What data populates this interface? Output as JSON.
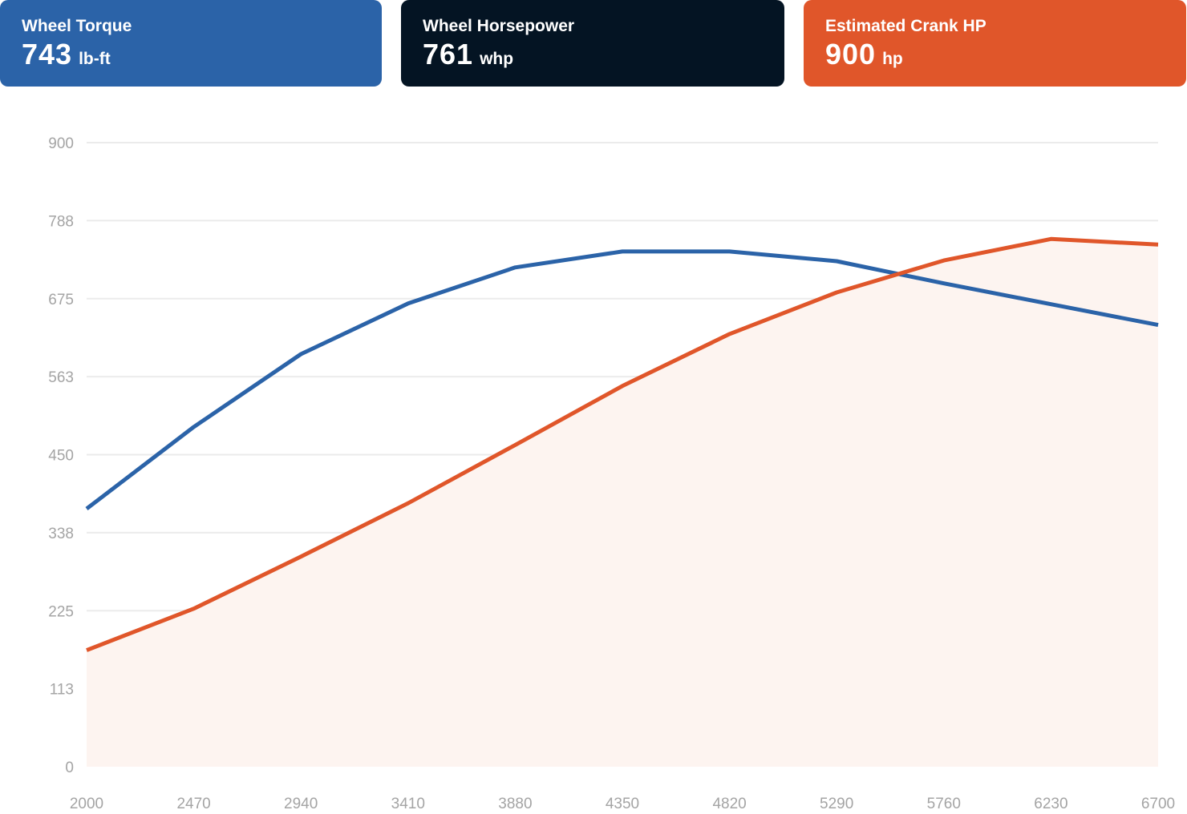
{
  "cards": [
    {
      "label": "Wheel Torque",
      "value": "743",
      "unit": "lb-ft",
      "color": "#2b63a8"
    },
    {
      "label": "Wheel Horsepower",
      "value": "761",
      "unit": "whp",
      "color": "#041423"
    },
    {
      "label": "Estimated Crank HP",
      "value": "900",
      "unit": "hp",
      "color": "#e0562a"
    }
  ],
  "chart_data": {
    "type": "line",
    "title": "",
    "xlabel": "",
    "ylabel": "",
    "x": [
      2000,
      2470,
      2940,
      3410,
      3880,
      4350,
      4820,
      5290,
      5760,
      6230,
      6700
    ],
    "x_tick_labels": [
      "2000",
      "2470",
      "2940",
      "3410",
      "3880",
      "4350",
      "4820",
      "5290",
      "5760",
      "6230",
      "6700"
    ],
    "y_tick_labels": [
      "0",
      "113",
      "225",
      "338",
      "450",
      "563",
      "675",
      "788",
      "900"
    ],
    "y_ticks": [
      0,
      112.5,
      225,
      337.5,
      450,
      562.5,
      675,
      787.5,
      900
    ],
    "xlim": [
      2000,
      6700
    ],
    "ylim": [
      0,
      900
    ],
    "grid": true,
    "series": [
      {
        "key": "torque",
        "color": "#2b63a8",
        "fill": false,
        "values": [
          372,
          490,
          595,
          668,
          720,
          743,
          743,
          729,
          697,
          667,
          637
        ]
      },
      {
        "key": "horsepower",
        "color": "#e0562a",
        "fill": true,
        "fill_color": "#fdf4f0",
        "values": [
          168,
          228,
          303,
          380,
          464,
          549,
          624,
          684,
          730,
          761,
          753
        ]
      }
    ]
  }
}
